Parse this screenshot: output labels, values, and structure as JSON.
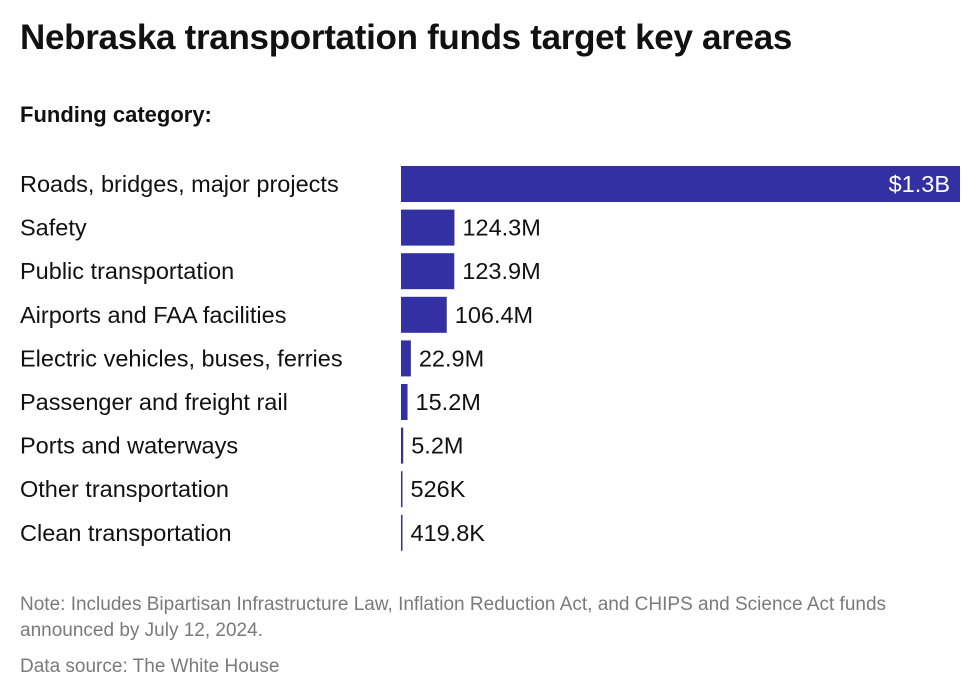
{
  "title": "Nebraska transportation funds target key areas",
  "subtitle": "Funding category:",
  "note": "Note: Includes Bipartisan Infrastructure Law, Inflation Reduction Act, and CHIPS and Science Act funds announced by July 12, 2024.",
  "source": "Data source: The White House",
  "colors": {
    "bar": "#3330a3",
    "text": "#111111",
    "inside_label": "#ffffff",
    "footer": "#7a7a7a"
  },
  "chart_data": {
    "type": "bar",
    "orientation": "horizontal",
    "categories": [
      "Roads, bridges, major projects",
      "Safety",
      "Public transportation",
      "Airports and FAA facilities",
      "Electric vehicles, buses, ferries",
      "Passenger and freight rail",
      "Ports and waterways",
      "Other transportation",
      "Clean transportation"
    ],
    "values": [
      1300000000,
      124300000,
      123900000,
      106400000,
      22900000,
      15200000,
      5200000,
      526000,
      419800
    ],
    "value_labels": [
      "$1.3B",
      "124.3M",
      "123.9M",
      "106.4M",
      "22.9M",
      "15.2M",
      "5.2M",
      "526K",
      "419.8K"
    ],
    "xlim": [
      0,
      1300000000
    ],
    "grid": false,
    "legend": "none"
  }
}
